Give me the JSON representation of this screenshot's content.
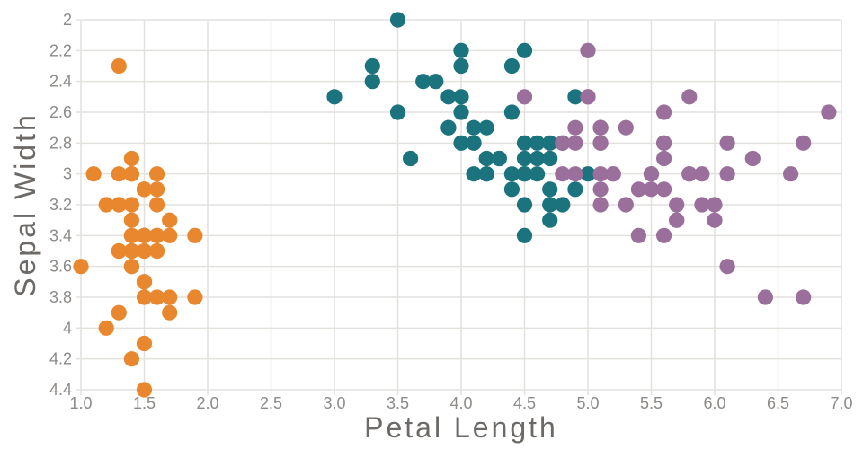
{
  "chart_data": {
    "type": "scatter",
    "title": "",
    "xlabel": "Petal Length",
    "ylabel": "Sepal Width",
    "xlim": [
      1.0,
      7.0
    ],
    "ylim": [
      2.0,
      4.4
    ],
    "y_axis_reversed": true,
    "grid": true,
    "legend": "none",
    "background_color": "#ffffff",
    "gridline_color": "#e2e1de",
    "tick_label_color": "#8d8a87",
    "axis_title_color": "#6c6966",
    "marker_radius_px": 8.6,
    "x_ticks": [
      {
        "v": 1.0,
        "label": "1.0"
      },
      {
        "v": 1.5,
        "label": "1.5"
      },
      {
        "v": 2.0,
        "label": "2.0"
      },
      {
        "v": 2.5,
        "label": "2.5"
      },
      {
        "v": 3.0,
        "label": "3.0"
      },
      {
        "v": 3.5,
        "label": "3.5"
      },
      {
        "v": 4.0,
        "label": "4.0"
      },
      {
        "v": 4.5,
        "label": "4.5"
      },
      {
        "v": 5.0,
        "label": "5.0"
      },
      {
        "v": 5.5,
        "label": "5.5"
      },
      {
        "v": 6.0,
        "label": "6.0"
      },
      {
        "v": 6.5,
        "label": "6.5"
      },
      {
        "v": 7.0,
        "label": "7.0"
      }
    ],
    "y_ticks": [
      {
        "v": 2.0,
        "label": "2"
      },
      {
        "v": 2.2,
        "label": "2.2"
      },
      {
        "v": 2.4,
        "label": "2.4"
      },
      {
        "v": 2.6,
        "label": "2.6"
      },
      {
        "v": 2.8,
        "label": "2.8"
      },
      {
        "v": 3.0,
        "label": "3"
      },
      {
        "v": 3.2,
        "label": "3.2"
      },
      {
        "v": 3.4,
        "label": "3.4"
      },
      {
        "v": 3.6,
        "label": "3.6"
      },
      {
        "v": 3.8,
        "label": "3.8"
      },
      {
        "v": 4.0,
        "label": "4"
      },
      {
        "v": 4.2,
        "label": "4.2"
      },
      {
        "v": 4.4,
        "label": "4.4"
      }
    ],
    "series": [
      {
        "name": "series-orange",
        "color": "#e8872d",
        "points": [
          [
            1.4,
            3.5
          ],
          [
            1.4,
            3.0
          ],
          [
            1.3,
            3.2
          ],
          [
            1.5,
            3.1
          ],
          [
            1.4,
            3.6
          ],
          [
            1.7,
            3.9
          ],
          [
            1.4,
            3.4
          ],
          [
            1.5,
            3.4
          ],
          [
            1.4,
            2.9
          ],
          [
            1.5,
            3.1
          ],
          [
            1.5,
            3.7
          ],
          [
            1.6,
            3.4
          ],
          [
            1.4,
            3.0
          ],
          [
            1.1,
            3.0
          ],
          [
            1.2,
            4.0
          ],
          [
            1.5,
            4.4
          ],
          [
            1.3,
            3.9
          ],
          [
            1.4,
            3.5
          ],
          [
            1.7,
            3.8
          ],
          [
            1.5,
            3.8
          ],
          [
            1.7,
            3.4
          ],
          [
            1.5,
            3.7
          ],
          [
            1.0,
            3.6
          ],
          [
            1.7,
            3.3
          ],
          [
            1.9,
            3.4
          ],
          [
            1.6,
            3.0
          ],
          [
            1.6,
            3.4
          ],
          [
            1.5,
            3.5
          ],
          [
            1.4,
            3.4
          ],
          [
            1.6,
            3.2
          ],
          [
            1.6,
            3.1
          ],
          [
            1.5,
            3.4
          ],
          [
            1.5,
            4.1
          ],
          [
            1.4,
            4.2
          ],
          [
            1.5,
            3.1
          ],
          [
            1.2,
            3.2
          ],
          [
            1.3,
            3.5
          ],
          [
            1.4,
            3.6
          ],
          [
            1.3,
            3.0
          ],
          [
            1.5,
            3.4
          ],
          [
            1.3,
            3.5
          ],
          [
            1.3,
            2.3
          ],
          [
            1.3,
            3.2
          ],
          [
            1.6,
            3.5
          ],
          [
            1.9,
            3.8
          ],
          [
            1.4,
            3.0
          ],
          [
            1.6,
            3.8
          ],
          [
            1.4,
            3.2
          ],
          [
            1.5,
            3.7
          ],
          [
            1.4,
            3.3
          ]
        ]
      },
      {
        "name": "series-teal",
        "color": "#1a737d",
        "points": [
          [
            4.7,
            3.2
          ],
          [
            4.5,
            3.2
          ],
          [
            4.9,
            3.1
          ],
          [
            4.0,
            2.3
          ],
          [
            4.6,
            2.8
          ],
          [
            4.5,
            2.8
          ],
          [
            4.7,
            3.3
          ],
          [
            3.3,
            2.4
          ],
          [
            4.6,
            2.9
          ],
          [
            3.9,
            2.7
          ],
          [
            3.5,
            2.0
          ],
          [
            4.2,
            3.0
          ],
          [
            4.0,
            2.2
          ],
          [
            4.7,
            2.9
          ],
          [
            3.6,
            2.9
          ],
          [
            4.4,
            3.1
          ],
          [
            4.5,
            3.0
          ],
          [
            4.1,
            2.7
          ],
          [
            4.5,
            2.2
          ],
          [
            3.9,
            2.5
          ],
          [
            4.8,
            3.2
          ],
          [
            4.0,
            2.8
          ],
          [
            4.9,
            2.5
          ],
          [
            4.7,
            2.8
          ],
          [
            4.3,
            2.9
          ],
          [
            4.4,
            3.0
          ],
          [
            4.8,
            2.8
          ],
          [
            5.0,
            3.0
          ],
          [
            4.5,
            2.9
          ],
          [
            3.5,
            2.6
          ],
          [
            3.8,
            2.4
          ],
          [
            3.7,
            2.4
          ],
          [
            3.9,
            2.7
          ],
          [
            5.1,
            2.7
          ],
          [
            4.5,
            3.0
          ],
          [
            4.5,
            3.4
          ],
          [
            4.7,
            3.1
          ],
          [
            4.4,
            2.3
          ],
          [
            4.1,
            3.0
          ],
          [
            4.0,
            2.5
          ],
          [
            4.4,
            2.6
          ],
          [
            4.6,
            3.0
          ],
          [
            4.0,
            2.6
          ],
          [
            3.3,
            2.3
          ],
          [
            4.2,
            2.7
          ],
          [
            4.2,
            3.0
          ],
          [
            4.2,
            2.9
          ],
          [
            4.3,
            2.9
          ],
          [
            3.0,
            2.5
          ],
          [
            4.1,
            2.8
          ]
        ]
      },
      {
        "name": "series-purple",
        "color": "#9a6f9b",
        "points": [
          [
            6.0,
            3.3
          ],
          [
            5.1,
            2.7
          ],
          [
            5.9,
            3.0
          ],
          [
            5.6,
            2.9
          ],
          [
            5.8,
            3.0
          ],
          [
            6.6,
            3.0
          ],
          [
            4.5,
            2.5
          ],
          [
            6.3,
            2.9
          ],
          [
            5.8,
            2.5
          ],
          [
            6.1,
            3.6
          ],
          [
            5.1,
            3.2
          ],
          [
            5.3,
            2.7
          ],
          [
            5.5,
            3.0
          ],
          [
            5.0,
            2.5
          ],
          [
            5.1,
            2.8
          ],
          [
            5.3,
            3.2
          ],
          [
            5.5,
            3.0
          ],
          [
            6.7,
            3.8
          ],
          [
            6.9,
            2.6
          ],
          [
            5.0,
            2.2
          ],
          [
            5.7,
            3.2
          ],
          [
            4.9,
            2.8
          ],
          [
            6.7,
            2.8
          ],
          [
            4.9,
            2.7
          ],
          [
            5.7,
            3.3
          ],
          [
            6.0,
            3.2
          ],
          [
            4.8,
            2.8
          ],
          [
            4.9,
            3.0
          ],
          [
            5.6,
            2.8
          ],
          [
            5.8,
            3.0
          ],
          [
            6.1,
            2.8
          ],
          [
            6.4,
            3.8
          ],
          [
            5.6,
            2.8
          ],
          [
            5.1,
            2.8
          ],
          [
            5.6,
            2.6
          ],
          [
            6.1,
            3.0
          ],
          [
            5.6,
            3.4
          ],
          [
            5.5,
            3.1
          ],
          [
            4.8,
            3.0
          ],
          [
            5.4,
            3.1
          ],
          [
            5.6,
            3.1
          ],
          [
            5.1,
            3.1
          ],
          [
            5.1,
            2.7
          ],
          [
            5.9,
            3.2
          ],
          [
            5.7,
            3.3
          ],
          [
            5.2,
            3.0
          ],
          [
            5.0,
            2.5
          ],
          [
            5.2,
            3.0
          ],
          [
            5.4,
            3.4
          ],
          [
            5.1,
            3.0
          ]
        ]
      }
    ]
  }
}
